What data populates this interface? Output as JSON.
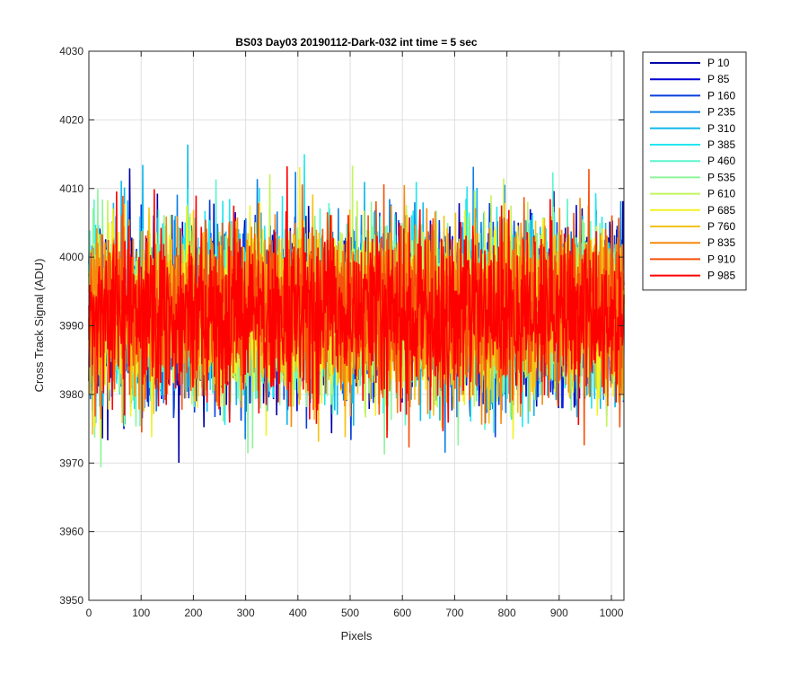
{
  "chart_data": {
    "type": "line",
    "title": "BS03 Day03 20190112-Dark-032 int time = 5 sec",
    "xlabel": "Pixels",
    "ylabel": "Cross Track Signal (ADU)",
    "xlim": [
      0,
      1024
    ],
    "ylim": [
      3950,
      4030
    ],
    "xticks": [
      0,
      100,
      200,
      300,
      400,
      500,
      600,
      700,
      800,
      900,
      1000
    ],
    "yticks": [
      3950,
      3960,
      3970,
      3980,
      3990,
      4000,
      4010,
      4020,
      4030
    ],
    "grid": true,
    "legend_position": "outside-top-right",
    "points_per_series": 1024,
    "series": [
      {
        "name": "P 10",
        "color": "#0000a6",
        "mean": 3992,
        "spread": 11
      },
      {
        "name": "P 85",
        "color": "#0000d6",
        "mean": 3992,
        "spread": 11
      },
      {
        "name": "P 160",
        "color": "#0a3fdc",
        "mean": 3992,
        "spread": 11
      },
      {
        "name": "P 235",
        "color": "#0f7fe4",
        "mean": 3992,
        "spread": 11
      },
      {
        "name": "P 310",
        "color": "#13b8ec",
        "mean": 3992,
        "spread": 11
      },
      {
        "name": "P 385",
        "color": "#22e6f0",
        "mean": 3992,
        "spread": 11
      },
      {
        "name": "P 460",
        "color": "#5cf5cc",
        "mean": 3992,
        "spread": 11
      },
      {
        "name": "P 535",
        "color": "#8ef59a",
        "mean": 3992,
        "spread": 11
      },
      {
        "name": "P 610",
        "color": "#c2f55a",
        "mean": 3992,
        "spread": 11
      },
      {
        "name": "P 685",
        "color": "#f2f224",
        "mean": 3992,
        "spread": 11
      },
      {
        "name": "P 760",
        "color": "#f5c213",
        "mean": 3992,
        "spread": 11
      },
      {
        "name": "P 835",
        "color": "#f58a0f",
        "mean": 3992,
        "spread": 11
      },
      {
        "name": "P 910",
        "color": "#f5520c",
        "mean": 3992,
        "spread": 11
      },
      {
        "name": "P 985",
        "color": "#ff0000",
        "mean": 3992,
        "spread": 11
      }
    ]
  }
}
